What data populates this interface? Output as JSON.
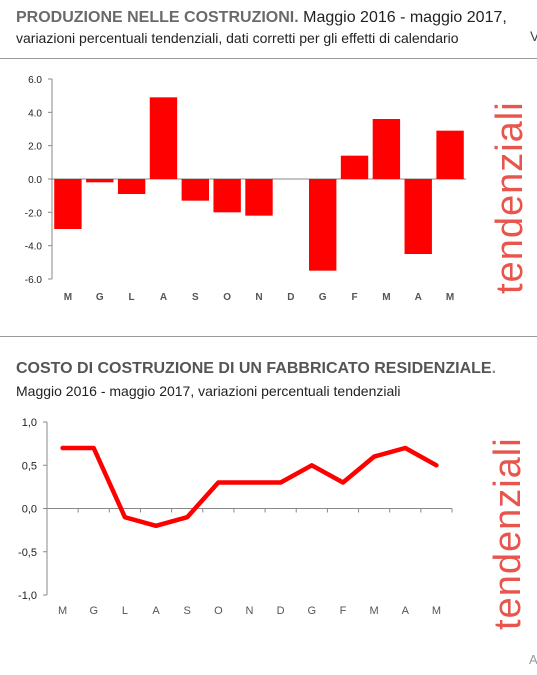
{
  "header1": {
    "title_strong": "PRODUZIONE NELLE COSTRUZIONI.",
    "title_rest": " Maggio 2016 - maggio 2017,",
    "subtitle": "variazioni percentuali tendenziali, dati corretti per gli effetti di calendario",
    "edge_char": "V"
  },
  "header2": {
    "title_strong": "COSTO DI COSTRUZIONE DI UN FABBRICATO RESIDENZIALE",
    "title_dot": ".",
    "subtitle": "Maggio 2016 - maggio 2017, variazioni percentuali tendenziali"
  },
  "side_label": "tendenziali",
  "corner_char": "A",
  "colors": {
    "bar": "#ff0000",
    "line": "#ff0000",
    "side_text": "#e8554d",
    "axis": "#888888"
  },
  "chart_data": [
    {
      "type": "bar",
      "title": "PRODUZIONE NELLE COSTRUZIONI. Maggio 2016 - maggio 2017, variazioni percentuali tendenziali, dati corretti per gli effetti di calendario",
      "categories": [
        "M",
        "G",
        "L",
        "A",
        "S",
        "O",
        "N",
        "D",
        "G",
        "F",
        "M",
        "A",
        "M"
      ],
      "values": [
        -3.0,
        -0.2,
        -0.9,
        4.9,
        -1.3,
        -2.0,
        -2.2,
        0.0,
        -5.5,
        1.4,
        3.6,
        -4.5,
        2.9
      ],
      "ylim": [
        -6,
        6
      ],
      "yticks": [
        "6.0",
        "4.0",
        "2.0",
        "0.0",
        "-2.0",
        "-4.0",
        "-6.0"
      ],
      "grid": false,
      "xlabel": "",
      "ylabel": ""
    },
    {
      "type": "line",
      "title": "COSTO DI COSTRUZIONE DI UN FABBRICATO RESIDENZIALE. Maggio 2016 - maggio 2017, variazioni percentuali tendenziali",
      "categories": [
        "M",
        "G",
        "L",
        "A",
        "S",
        "O",
        "N",
        "D",
        "G",
        "F",
        "M",
        "A",
        "M"
      ],
      "values": [
        0.7,
        0.7,
        -0.1,
        -0.2,
        -0.1,
        0.3,
        0.3,
        0.3,
        0.5,
        0.3,
        0.6,
        0.7,
        0.5
      ],
      "ylim": [
        -1,
        1
      ],
      "yticks": [
        "1,0",
        "0,5",
        "0,0",
        "-0,5",
        "-1,0"
      ],
      "grid": false,
      "xlabel": "",
      "ylabel": ""
    }
  ]
}
